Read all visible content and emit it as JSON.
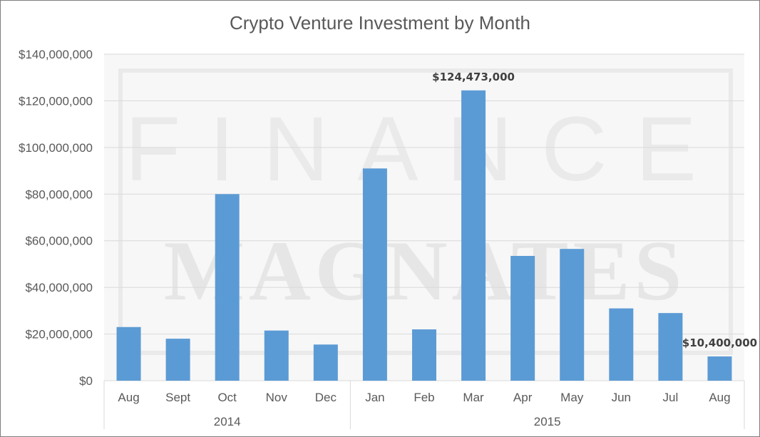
{
  "chart_data": {
    "type": "bar",
    "title": "Crypto Venture Investment by Month",
    "xlabel": "",
    "ylabel": "",
    "ylim": [
      0,
      140000000
    ],
    "yticks": [
      0,
      20000000,
      40000000,
      60000000,
      80000000,
      100000000,
      120000000,
      140000000
    ],
    "ytick_labels": [
      "$0",
      "$20,000,000",
      "$40,000,000",
      "$60,000,000",
      "$80,000,000",
      "$100,000,000",
      "$120,000,000",
      "$140,000,000"
    ],
    "categories": [
      "Aug",
      "Sept",
      "Oct",
      "Nov",
      "Dec",
      "Jan",
      "Feb",
      "Mar",
      "Apr",
      "May",
      "Jun",
      "Jul",
      "Aug"
    ],
    "groups": [
      {
        "label": "2014",
        "count": 5
      },
      {
        "label": "2015",
        "count": 8
      }
    ],
    "values": [
      23000000,
      18000000,
      80000000,
      21500000,
      15500000,
      91000000,
      22000000,
      124473000,
      53500000,
      56500000,
      31000000,
      29000000,
      10400000
    ],
    "data_labels": [
      {
        "index": 7,
        "text": "$124,473,000"
      },
      {
        "index": 12,
        "text": "$10,400,000"
      }
    ],
    "grid": true,
    "bar_color": "#5b9bd5",
    "watermark": {
      "line1": "FINANCE",
      "line2": "MAGNATES"
    }
  }
}
